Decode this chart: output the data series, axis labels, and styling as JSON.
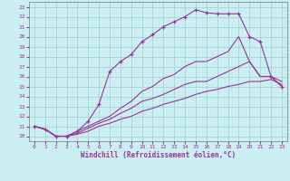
{
  "xlabel": "Windchill (Refroidissement éolien,°C)",
  "bg_color": "#cbeef3",
  "line_color": "#993399",
  "grid_color": "#a0ccd4",
  "xlim": [
    -0.5,
    23.5
  ],
  "ylim": [
    9.5,
    23.5
  ],
  "yticks": [
    10,
    11,
    12,
    13,
    14,
    15,
    16,
    17,
    18,
    19,
    20,
    21,
    22,
    23
  ],
  "xticks": [
    0,
    1,
    2,
    3,
    4,
    5,
    6,
    7,
    8,
    9,
    10,
    11,
    12,
    13,
    14,
    15,
    16,
    17,
    18,
    19,
    20,
    21,
    22,
    23
  ],
  "lines": [
    {
      "x": [
        0,
        1,
        2,
        3,
        4,
        5,
        6,
        7,
        8,
        9,
        10,
        11,
        12,
        13,
        14,
        15,
        16,
        17,
        18,
        19,
        20,
        21,
        22,
        23
      ],
      "y": [
        11,
        10.7,
        10,
        10,
        10.5,
        11.5,
        13.2,
        16.5,
        17.5,
        18.2,
        19.5,
        20.2,
        21.0,
        21.5,
        22.0,
        22.7,
        22.4,
        22.3,
        22.3,
        22.3,
        20.0,
        19.5,
        16.0,
        15.0
      ],
      "marker": "+"
    },
    {
      "x": [
        0,
        1,
        2,
        3,
        4,
        5,
        6,
        7,
        8,
        9,
        10,
        11,
        12,
        13,
        14,
        15,
        16,
        17,
        18,
        19,
        20,
        21,
        22,
        23
      ],
      "y": [
        11,
        10.7,
        10,
        10,
        10.5,
        11.0,
        11.5,
        12.0,
        12.8,
        13.5,
        14.5,
        15.0,
        15.8,
        16.2,
        17.0,
        17.5,
        17.5,
        18.0,
        18.5,
        20.0,
        17.5,
        16.0,
        16.0,
        15.5
      ],
      "marker": null
    },
    {
      "x": [
        0,
        1,
        2,
        3,
        4,
        5,
        6,
        7,
        8,
        9,
        10,
        11,
        12,
        13,
        14,
        15,
        16,
        17,
        18,
        19,
        20,
        21,
        22,
        23
      ],
      "y": [
        11,
        10.7,
        10,
        10,
        10.3,
        10.8,
        11.3,
        11.7,
        12.3,
        12.8,
        13.5,
        13.8,
        14.2,
        14.7,
        15.2,
        15.5,
        15.5,
        16.0,
        16.5,
        17.0,
        17.5,
        16.0,
        16.0,
        15.0
      ],
      "marker": null
    },
    {
      "x": [
        0,
        1,
        2,
        3,
        4,
        5,
        6,
        7,
        8,
        9,
        10,
        11,
        12,
        13,
        14,
        15,
        16,
        17,
        18,
        19,
        20,
        21,
        22,
        23
      ],
      "y": [
        11,
        10.7,
        10,
        10,
        10.2,
        10.5,
        11.0,
        11.3,
        11.7,
        12.0,
        12.5,
        12.8,
        13.2,
        13.5,
        13.8,
        14.2,
        14.5,
        14.7,
        15.0,
        15.2,
        15.5,
        15.5,
        15.7,
        15.2
      ],
      "marker": null
    }
  ]
}
